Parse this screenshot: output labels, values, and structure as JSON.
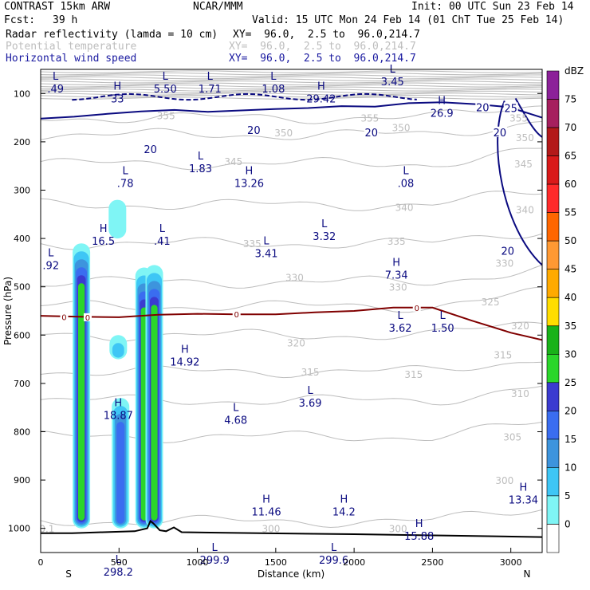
{
  "header": {
    "left_title": "CONTRAST 15km ARW",
    "center_title": "NCAR/MMM",
    "init": "Init: 00 UTC Sun 23 Feb 14",
    "fcst_label": "Fcst:",
    "fcst_value": "39 h",
    "valid": "Valid: 15 UTC Mon 24 Feb 14 (01 ChT Tue 25 Feb 14)",
    "field1_name": "Radar reflectivity (lamda = 10 cm)",
    "field1_xy": "XY=  96.0,  2.5 to  96.0,214.7",
    "field2_name": "Potential temperature",
    "field2_xy": "XY=  96.0,  2.5 to  96.0,214.7",
    "field3_name": "Horizontal wind speed",
    "field3_xy": "XY=  96.0,  2.5 to  96.0,214.7"
  },
  "colors": {
    "reflectivity": [
      "#ffffff",
      "#7ff5f5",
      "#3ec6f5",
      "#3d94dd",
      "#3a6df0",
      "#3b3bd0",
      "#2bd62b",
      "#19b219",
      "#ffdd00",
      "#ffaa00",
      "#ff9933",
      "#ff6600",
      "#ff2b2b",
      "#d91a1a",
      "#b31919",
      "#a61f5e",
      "#8c2199",
      "#a64dbf",
      "#c27fd1"
    ],
    "wind": "#0a0a80",
    "theta": "#bdbdbd",
    "freezing": "#800000"
  },
  "chart_data": {
    "type": "cross-section",
    "xlabel": "Distance (km)",
    "ylabel": "Pressure (hPa)",
    "xlim": [
      0,
      3200
    ],
    "ylim": [
      1050,
      50
    ],
    "x_ticks": [
      0,
      500,
      1000,
      1500,
      2000,
      2500,
      3000
    ],
    "y_ticks": [
      100,
      200,
      300,
      400,
      500,
      600,
      700,
      800,
      900,
      1000
    ],
    "x_end_labels": {
      "left": "S",
      "right": "N"
    },
    "colorbar": {
      "label": "dBZ",
      "levels": [
        0,
        5,
        10,
        15,
        20,
        25,
        30,
        35,
        40,
        45,
        50,
        55,
        60,
        65,
        70,
        75
      ]
    },
    "reflectivity_cores": [
      {
        "x": 260,
        "ptop": 410,
        "pbot": 1000,
        "max_dbz": 30
      },
      {
        "x": 490,
        "ptop": 320,
        "pbot": 400,
        "max_dbz": 5
      },
      {
        "x": 495,
        "ptop": 600,
        "pbot": 650,
        "max_dbz": 10
      },
      {
        "x": 510,
        "ptop": 730,
        "pbot": 1000,
        "max_dbz": 20
      },
      {
        "x": 660,
        "ptop": 460,
        "pbot": 1000,
        "max_dbz": 30
      },
      {
        "x": 725,
        "ptop": 455,
        "pbot": 1000,
        "max_dbz": 30
      }
    ],
    "theta_labels": [
      {
        "x": 800,
        "p": 145,
        "v": "355"
      },
      {
        "x": 2100,
        "p": 150,
        "v": "355"
      },
      {
        "x": 3050,
        "p": 150,
        "v": "355"
      },
      {
        "x": 1550,
        "p": 180,
        "v": "350"
      },
      {
        "x": 2300,
        "p": 170,
        "v": "350"
      },
      {
        "x": 3090,
        "p": 190,
        "v": "350"
      },
      {
        "x": 1230,
        "p": 240,
        "v": "345"
      },
      {
        "x": 3080,
        "p": 245,
        "v": "345"
      },
      {
        "x": 2320,
        "p": 335,
        "v": "340"
      },
      {
        "x": 3090,
        "p": 340,
        "v": "340"
      },
      {
        "x": 1350,
        "p": 410,
        "v": "335"
      },
      {
        "x": 2270,
        "p": 405,
        "v": "335"
      },
      {
        "x": 2960,
        "p": 450,
        "v": "330"
      },
      {
        "x": 1620,
        "p": 480,
        "v": "330"
      },
      {
        "x": 2280,
        "p": 500,
        "v": "330"
      },
      {
        "x": 2870,
        "p": 530,
        "v": "325"
      },
      {
        "x": 3060,
        "p": 580,
        "v": "320"
      },
      {
        "x": 1630,
        "p": 615,
        "v": "320"
      },
      {
        "x": 2950,
        "p": 640,
        "v": "315"
      },
      {
        "x": 1720,
        "p": 675,
        "v": "315"
      },
      {
        "x": 2380,
        "p": 680,
        "v": "315"
      },
      {
        "x": 3060,
        "p": 720,
        "v": "310"
      },
      {
        "x": 3010,
        "p": 810,
        "v": "305"
      },
      {
        "x": 2960,
        "p": 900,
        "v": "300"
      },
      {
        "x": 1470,
        "p": 1000,
        "v": "300"
      },
      {
        "x": 2280,
        "p": 1000,
        "v": "300"
      },
      {
        "x": 40,
        "p": 1000,
        "v": "0.1"
      }
    ],
    "wind_labels": [
      {
        "x": 1360,
        "p": 175,
        "v": "20"
      },
      {
        "x": 2110,
        "p": 180,
        "v": "20"
      },
      {
        "x": 700,
        "p": 215,
        "v": "20"
      },
      {
        "x": 2820,
        "p": 128,
        "v": "20"
      },
      {
        "x": 3000,
        "p": 130,
        "v": "25"
      },
      {
        "x": 2930,
        "p": 180,
        "v": "20"
      },
      {
        "x": 2980,
        "p": 425,
        "v": "20"
      }
    ],
    "freezing_level": {
      "label": "0",
      "x": [
        0,
        250,
        500,
        750,
        1000,
        1250,
        1500,
        1750,
        2000,
        2250,
        2500,
        2750,
        3000,
        3200
      ],
      "p": [
        560,
        562,
        563,
        558,
        556,
        557,
        557,
        553,
        550,
        543,
        543,
        570,
        595,
        610
      ]
    },
    "wind_contour_20_p": [
      152,
      148,
      142,
      137,
      134,
      138,
      135,
      132,
      130,
      126,
      127,
      120,
      118,
      122,
      128,
      150
    ],
    "terrain": {
      "x": [
        0,
        200,
        400,
        600,
        680,
        700,
        720,
        760,
        800,
        850,
        900,
        1400,
        2000,
        2600,
        3200
      ],
      "p": [
        1010,
        1010,
        1008,
        1006,
        1000,
        985,
        990,
        1004,
        1006,
        998,
        1008,
        1010,
        1012,
        1015,
        1018
      ]
    },
    "extrema": [
      {
        "type": "L",
        "x": 95,
        "p": 85,
        "v": ".49"
      },
      {
        "type": "L",
        "x": 795,
        "p": 85,
        "v": "5.50"
      },
      {
        "type": "L",
        "x": 1080,
        "p": 85,
        "v": "1.71"
      },
      {
        "type": "L",
        "x": 1485,
        "p": 85,
        "v": "1.08"
      },
      {
        "type": "L",
        "x": 2245,
        "p": 70,
        "v": "3.45"
      },
      {
        "type": "H",
        "x": 490,
        "p": 105,
        "v": "33"
      },
      {
        "type": "H",
        "x": 1790,
        "p": 105,
        "v": "29.42"
      },
      {
        "type": "H",
        "x": 2560,
        "p": 135,
        "v": "26.9"
      },
      {
        "type": "L",
        "x": 540,
        "p": 280,
        "v": ".78"
      },
      {
        "type": "L",
        "x": 1020,
        "p": 250,
        "v": "1.83"
      },
      {
        "type": "H",
        "x": 1330,
        "p": 280,
        "v": "13.26"
      },
      {
        "type": "L",
        "x": 2330,
        "p": 280,
        "v": ".08"
      },
      {
        "type": "L",
        "x": 775,
        "p": 400,
        "v": ".41"
      },
      {
        "type": "H",
        "x": 400,
        "p": 400,
        "v": "16.5"
      },
      {
        "type": "L",
        "x": 1810,
        "p": 390,
        "v": "3.32"
      },
      {
        "type": "L",
        "x": 1440,
        "p": 425,
        "v": "3.41"
      },
      {
        "type": "L",
        "x": 65,
        "p": 450,
        "v": ".92"
      },
      {
        "type": "H",
        "x": 2270,
        "p": 470,
        "v": "7.34"
      },
      {
        "type": "L",
        "x": 2295,
        "p": 580,
        "v": "3.62"
      },
      {
        "type": "L",
        "x": 2565,
        "p": 580,
        "v": "1.50"
      },
      {
        "type": "H",
        "x": 920,
        "p": 650,
        "v": "14.92"
      },
      {
        "type": "L",
        "x": 1720,
        "p": 735,
        "v": "3.69"
      },
      {
        "type": "H",
        "x": 495,
        "p": 760,
        "v": "18.87"
      },
      {
        "type": "L",
        "x": 1245,
        "p": 770,
        "v": "4.68"
      },
      {
        "type": "H",
        "x": 1440,
        "p": 960,
        "v": "11.46"
      },
      {
        "type": "H",
        "x": 1935,
        "p": 960,
        "v": "14.2"
      },
      {
        "type": "H",
        "x": 2415,
        "p": 1010,
        "v": "15.88"
      },
      {
        "type": "H",
        "x": 3080,
        "p": 935,
        "v": "13.34"
      },
      {
        "type": "L",
        "x": 495,
        "p": 1085,
        "v": "298.2"
      },
      {
        "type": "L",
        "x": 1110,
        "p": 1060,
        "v": "299.9"
      },
      {
        "type": "L",
        "x": 1870,
        "p": 1060,
        "v": "299.6"
      }
    ]
  }
}
